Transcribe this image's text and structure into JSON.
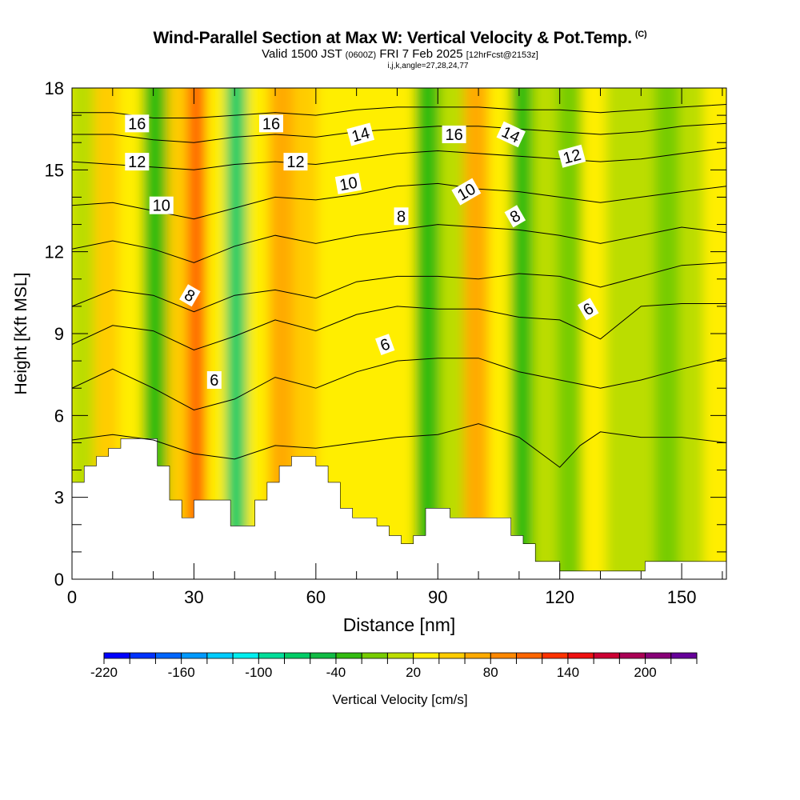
{
  "header": {
    "title": "Wind-Parallel Section at Max W: Vertical Velocity & Pot.Temp.",
    "title_tag": "(C)",
    "valid_prefix": "Valid 1500 JST",
    "valid_utc": "(0600Z)",
    "valid_date": "FRI 7 Feb 2025",
    "forecast_info": "[12hrFcst@2153z]",
    "indices": "i,j,k,angle=27,28,24,77"
  },
  "chart_data": {
    "type": "heatmap",
    "xlabel": "Distance [nm]",
    "ylabel": "Height [Kft MSL]",
    "xlim": [
      0,
      161
    ],
    "ylim": [
      0,
      18
    ],
    "x_ticks": [
      0,
      30,
      60,
      90,
      120,
      150
    ],
    "y_ticks": [
      0,
      3,
      6,
      9,
      12,
      15,
      18
    ],
    "colorbar": {
      "label": "Vertical Velocity [cm/s]",
      "tick_labels": [
        -220,
        -160,
        -100,
        -40,
        20,
        80,
        140,
        200
      ],
      "colors": [
        "#0000ff",
        "#0033ff",
        "#0066ff",
        "#0099ff",
        "#00ccff",
        "#00eeee",
        "#00dd99",
        "#00cc66",
        "#11bb44",
        "#33bb11",
        "#77cc00",
        "#bbdd00",
        "#ffee00",
        "#ffcc00",
        "#ffaa00",
        "#ff8800",
        "#ff6600",
        "#ff3300",
        "#ee1111",
        "#cc0033",
        "#aa0055",
        "#880077",
        "#660099"
      ]
    },
    "velocity_columns": [
      {
        "x": 3,
        "w": -10
      },
      {
        "x": 9,
        "w": 30
      },
      {
        "x": 15,
        "w": 10
      },
      {
        "x": 21,
        "w": -35
      },
      {
        "x": 27,
        "w": 30
      },
      {
        "x": 31,
        "w": 90
      },
      {
        "x": 36,
        "w": 20
      },
      {
        "x": 41,
        "w": -75
      },
      {
        "x": 46,
        "w": 10
      },
      {
        "x": 52,
        "w": 55
      },
      {
        "x": 58,
        "w": 35
      },
      {
        "x": 64,
        "w": 15
      },
      {
        "x": 70,
        "w": 20
      },
      {
        "x": 76,
        "w": 25
      },
      {
        "x": 82,
        "w": 20
      },
      {
        "x": 88,
        "w": -35
      },
      {
        "x": 94,
        "w": 5
      },
      {
        "x": 100,
        "w": 60
      },
      {
        "x": 106,
        "w": 20
      },
      {
        "x": 111,
        "w": -45
      },
      {
        "x": 117,
        "w": 0
      },
      {
        "x": 123,
        "w": -20
      },
      {
        "x": 129,
        "w": 15
      },
      {
        "x": 135,
        "w": -10
      },
      {
        "x": 141,
        "w": 0
      },
      {
        "x": 147,
        "w": -25
      },
      {
        "x": 153,
        "w": -10
      },
      {
        "x": 159,
        "w": 10
      }
    ],
    "terrain": [
      {
        "x": 0,
        "z": 3.55
      },
      {
        "x": 3,
        "z": 4.15
      },
      {
        "x": 6,
        "z": 4.5
      },
      {
        "x": 9,
        "z": 4.8
      },
      {
        "x": 12,
        "z": 5.15
      },
      {
        "x": 21,
        "z": 4.15
      },
      {
        "x": 24,
        "z": 2.9
      },
      {
        "x": 27,
        "z": 2.25
      },
      {
        "x": 30,
        "z": 2.9
      },
      {
        "x": 39,
        "z": 1.95
      },
      {
        "x": 45,
        "z": 2.9
      },
      {
        "x": 48,
        "z": 3.55
      },
      {
        "x": 51,
        "z": 4.15
      },
      {
        "x": 54,
        "z": 4.5
      },
      {
        "x": 60,
        "z": 4.15
      },
      {
        "x": 63,
        "z": 3.55
      },
      {
        "x": 66,
        "z": 2.6
      },
      {
        "x": 69,
        "z": 2.25
      },
      {
        "x": 75,
        "z": 1.95
      },
      {
        "x": 78,
        "z": 1.6
      },
      {
        "x": 81,
        "z": 1.3
      },
      {
        "x": 84,
        "z": 1.6
      },
      {
        "x": 87,
        "z": 2.6
      },
      {
        "x": 93,
        "z": 2.25
      },
      {
        "x": 108,
        "z": 1.6
      },
      {
        "x": 111,
        "z": 1.3
      },
      {
        "x": 114,
        "z": 0.65
      },
      {
        "x": 117,
        "z": 0.65
      },
      {
        "x": 120,
        "z": 0.3
      },
      {
        "x": 141,
        "z": 0.65
      }
    ],
    "isentropes": {
      "labeled_values": [
        6,
        8,
        10,
        12,
        14,
        16
      ],
      "lines": [
        {
          "value": 5,
          "x": [
            0,
            10,
            20,
            30,
            40,
            50,
            60,
            70,
            80,
            90,
            100,
            110,
            120,
            125,
            130,
            140,
            150,
            161
          ],
          "y": [
            5.1,
            5.3,
            5.1,
            4.6,
            4.4,
            4.9,
            4.8,
            5.0,
            5.2,
            5.3,
            5.7,
            5.2,
            4.1,
            4.9,
            5.4,
            5.2,
            5.2,
            5.0
          ]
        },
        {
          "value": 6,
          "x": [
            0,
            10,
            20,
            30,
            40,
            50,
            60,
            70,
            80,
            90,
            100,
            110,
            120,
            130,
            140,
            150,
            161
          ],
          "y": [
            7.0,
            7.7,
            7.0,
            6.2,
            6.6,
            7.4,
            7.0,
            7.6,
            8.0,
            8.1,
            8.1,
            7.6,
            7.3,
            7.0,
            7.3,
            7.7,
            8.1
          ]
        },
        {
          "value": 7,
          "x": [
            0,
            10,
            20,
            30,
            40,
            50,
            60,
            70,
            80,
            90,
            100,
            110,
            120,
            130,
            140,
            150,
            161
          ],
          "y": [
            8.6,
            9.3,
            9.1,
            8.4,
            8.9,
            9.5,
            9.1,
            9.7,
            10.0,
            9.9,
            9.9,
            9.6,
            9.5,
            8.8,
            10.0,
            10.1,
            10.1
          ]
        },
        {
          "value": 8,
          "x": [
            0,
            10,
            20,
            30,
            40,
            50,
            60,
            70,
            80,
            90,
            100,
            110,
            120,
            130,
            140,
            150,
            161
          ],
          "y": [
            10.0,
            10.6,
            10.4,
            9.8,
            10.4,
            10.6,
            10.3,
            10.9,
            11.1,
            11.1,
            11.0,
            11.2,
            11.1,
            10.7,
            11.1,
            11.5,
            11.6
          ]
        },
        {
          "value": 9,
          "x": [
            0,
            10,
            20,
            30,
            40,
            50,
            60,
            70,
            80,
            90,
            100,
            110,
            120,
            130,
            140,
            150,
            161
          ],
          "y": [
            12.1,
            12.4,
            12.1,
            11.6,
            12.2,
            12.6,
            12.3,
            12.6,
            12.8,
            13.0,
            12.9,
            12.8,
            12.6,
            12.3,
            12.6,
            12.9,
            12.7
          ]
        },
        {
          "value": 10,
          "x": [
            0,
            10,
            20,
            30,
            40,
            50,
            60,
            70,
            80,
            90,
            100,
            110,
            120,
            130,
            140,
            150,
            161
          ],
          "y": [
            13.7,
            13.8,
            13.5,
            13.2,
            13.6,
            14.0,
            13.9,
            14.1,
            14.4,
            14.5,
            14.3,
            14.2,
            14.0,
            13.8,
            14.0,
            14.2,
            14.4
          ]
        },
        {
          "value": 12,
          "x": [
            0,
            10,
            20,
            30,
            40,
            50,
            60,
            70,
            80,
            90,
            100,
            110,
            120,
            130,
            140,
            150,
            161
          ],
          "y": [
            15.3,
            15.2,
            15.1,
            15.0,
            15.2,
            15.3,
            15.2,
            15.4,
            15.6,
            15.7,
            15.6,
            15.5,
            15.4,
            15.3,
            15.4,
            15.6,
            15.8
          ]
        },
        {
          "value": 14,
          "x": [
            0,
            10,
            20,
            30,
            40,
            50,
            60,
            70,
            80,
            90,
            100,
            110,
            120,
            130,
            140,
            150,
            161
          ],
          "y": [
            16.3,
            16.3,
            16.1,
            16.0,
            16.2,
            16.3,
            16.2,
            16.4,
            16.5,
            16.6,
            16.6,
            16.5,
            16.4,
            16.3,
            16.4,
            16.6,
            16.7
          ]
        },
        {
          "value": 16,
          "x": [
            0,
            10,
            20,
            30,
            40,
            50,
            60,
            70,
            80,
            90,
            100,
            110,
            120,
            130,
            140,
            150,
            161
          ],
          "y": [
            17.1,
            17.1,
            16.9,
            16.9,
            17.0,
            17.1,
            17.0,
            17.2,
            17.3,
            17.3,
            17.3,
            17.2,
            17.2,
            17.1,
            17.2,
            17.3,
            17.4
          ]
        }
      ],
      "labels": [
        {
          "text": "16",
          "x": 16,
          "y": 16.7,
          "rot": 0
        },
        {
          "text": "16",
          "x": 49,
          "y": 16.7,
          "rot": 0
        },
        {
          "text": "16",
          "x": 94,
          "y": 16.3,
          "rot": 0
        },
        {
          "text": "14",
          "x": 71,
          "y": 16.3,
          "rot": -15
        },
        {
          "text": "14",
          "x": 108,
          "y": 16.3,
          "rot": 25
        },
        {
          "text": "12",
          "x": 16,
          "y": 15.3,
          "rot": 0
        },
        {
          "text": "12",
          "x": 55,
          "y": 15.3,
          "rot": 0
        },
        {
          "text": "12",
          "x": 123,
          "y": 15.5,
          "rot": -15
        },
        {
          "text": "10",
          "x": 22,
          "y": 13.7,
          "rot": 0
        },
        {
          "text": "10",
          "x": 68,
          "y": 14.5,
          "rot": -10
        },
        {
          "text": "10",
          "x": 97,
          "y": 14.2,
          "rot": -30
        },
        {
          "text": "8",
          "x": 81,
          "y": 13.3,
          "rot": 0
        },
        {
          "text": "8",
          "x": 109,
          "y": 13.3,
          "rot": -30
        },
        {
          "text": "8",
          "x": 29,
          "y": 10.4,
          "rot": 30
        },
        {
          "text": "6",
          "x": 77,
          "y": 8.6,
          "rot": -20
        },
        {
          "text": "6",
          "x": 127,
          "y": 9.9,
          "rot": -30
        },
        {
          "text": "6",
          "x": 35,
          "y": 7.3,
          "rot": 0
        }
      ]
    }
  }
}
